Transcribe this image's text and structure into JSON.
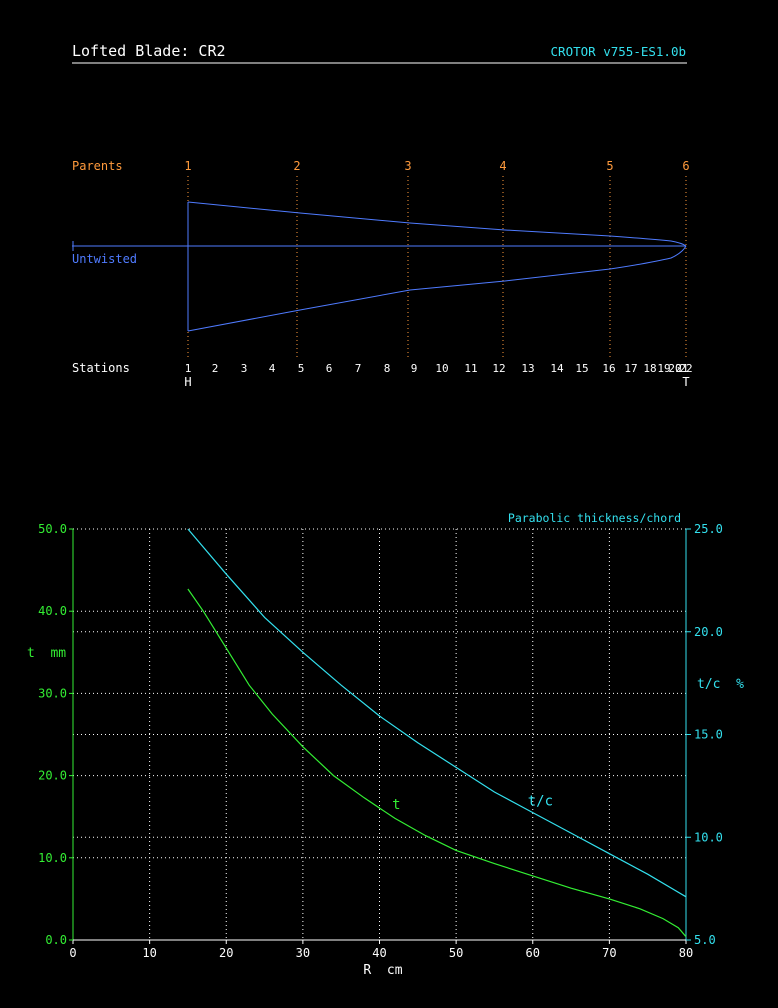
{
  "header": {
    "title": "Lofted Blade: CR2",
    "version": "CROTOR v755-ES1.0b"
  },
  "planform": {
    "parents_label": "Parents",
    "untwisted_label": "Untwisted",
    "stations_label": "Stations",
    "hub_marker": "H",
    "tip_marker": "T",
    "parents": [
      "1",
      "2",
      "3",
      "4",
      "5",
      "6"
    ],
    "stations": [
      "1",
      "2",
      "3",
      "4",
      "5",
      "6",
      "7",
      "8",
      "9",
      "10",
      "11",
      "12",
      "13",
      "14",
      "15",
      "16",
      "17",
      "18",
      "19",
      "20",
      "21",
      "22"
    ]
  },
  "colors": {
    "background": "#000000",
    "text": "#ffffff",
    "parents": "#ff9a3c",
    "blade": "#4f7bff",
    "thickness": "#33ee33",
    "tc": "#33e0ee",
    "grid": "#ffffff"
  },
  "chart_data": {
    "type": "line",
    "title": "Parabolic thickness/chord",
    "xlabel": "R  cm",
    "ylabel_left": "t  mm",
    "ylabel_right": "t/c  %",
    "xlim": [
      0,
      80
    ],
    "ylim_left": [
      0,
      50
    ],
    "ylim_right": [
      5,
      25
    ],
    "x_ticks": [
      "0",
      "10",
      "20",
      "30",
      "40",
      "50",
      "60",
      "70",
      "80"
    ],
    "y_ticks_left": [
      "0.0",
      "10.0",
      "20.0",
      "30.0",
      "40.0",
      "50.0"
    ],
    "y_ticks_right": [
      "5.0",
      "10.0",
      "15.0",
      "20.0",
      "25.0"
    ],
    "grid": true,
    "series": [
      {
        "name": "t",
        "axis": "left",
        "x": [
          15,
          17,
          20,
          23,
          26,
          30,
          34,
          38,
          42,
          46,
          50,
          55,
          60,
          65,
          70,
          74,
          77,
          79,
          80
        ],
        "values": [
          42.7,
          40.0,
          35.5,
          31.0,
          27.5,
          23.5,
          20.0,
          17.3,
          14.8,
          12.7,
          10.9,
          9.3,
          7.8,
          6.3,
          5.0,
          3.8,
          2.6,
          1.5,
          0.4
        ]
      },
      {
        "name": "t/c",
        "axis": "right",
        "x": [
          15,
          20,
          25,
          30,
          35,
          40,
          45,
          50,
          55,
          60,
          65,
          70,
          75,
          80
        ],
        "values": [
          25.0,
          22.8,
          20.7,
          19.0,
          17.4,
          15.9,
          14.6,
          13.4,
          12.2,
          11.2,
          10.2,
          9.2,
          8.2,
          7.1
        ]
      }
    ]
  }
}
